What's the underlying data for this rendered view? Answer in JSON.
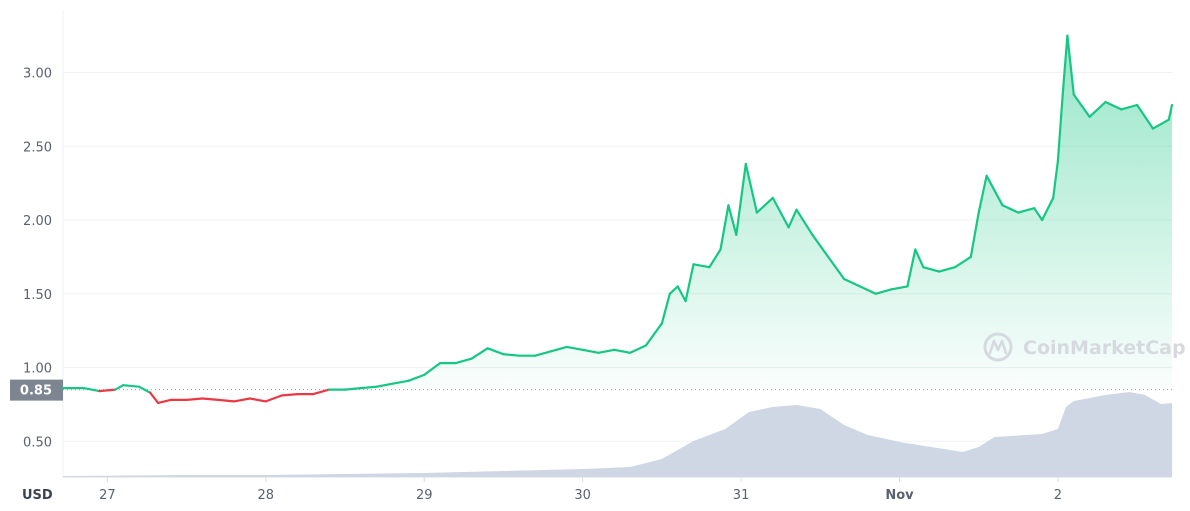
{
  "chart_data": {
    "type": "line",
    "currency_label": "USD",
    "watermark": "CoinMarketCap",
    "reference_price": 0.85,
    "reference_label": "0.85",
    "ylim": [
      0.0,
      3.3
    ],
    "y_ticks": [
      {
        "v": 0.5,
        "label": "0.50"
      },
      {
        "v": 1.0,
        "label": "1.00"
      },
      {
        "v": 1.5,
        "label": "1.50"
      },
      {
        "v": 2.0,
        "label": "2.00"
      },
      {
        "v": 2.5,
        "label": "2.50"
      },
      {
        "v": 3.0,
        "label": "3.00"
      }
    ],
    "x_range": [
      26.72,
      33.72
    ],
    "x_ticks": [
      {
        "d": 27,
        "label": "27",
        "bold": false
      },
      {
        "d": 28,
        "label": "28",
        "bold": false
      },
      {
        "d": 29,
        "label": "29",
        "bold": false
      },
      {
        "d": 30,
        "label": "30",
        "bold": false
      },
      {
        "d": 31,
        "label": "31",
        "bold": false
      },
      {
        "d": 32,
        "label": "Nov",
        "bold": true
      },
      {
        "d": 33,
        "label": "2",
        "bold": false
      }
    ],
    "price_series": [
      [
        26.72,
        0.86
      ],
      [
        26.85,
        0.86
      ],
      [
        26.95,
        0.84
      ],
      [
        27.05,
        0.85
      ],
      [
        27.1,
        0.88
      ],
      [
        27.2,
        0.87
      ],
      [
        27.27,
        0.83
      ],
      [
        27.32,
        0.76
      ],
      [
        27.4,
        0.78
      ],
      [
        27.5,
        0.78
      ],
      [
        27.6,
        0.79
      ],
      [
        27.7,
        0.78
      ],
      [
        27.8,
        0.77
      ],
      [
        27.9,
        0.79
      ],
      [
        28.0,
        0.77
      ],
      [
        28.1,
        0.81
      ],
      [
        28.2,
        0.82
      ],
      [
        28.3,
        0.82
      ],
      [
        28.4,
        0.85
      ],
      [
        28.5,
        0.85
      ],
      [
        28.6,
        0.86
      ],
      [
        28.7,
        0.87
      ],
      [
        28.8,
        0.89
      ],
      [
        28.9,
        0.91
      ],
      [
        29.0,
        0.95
      ],
      [
        29.1,
        1.03
      ],
      [
        29.2,
        1.03
      ],
      [
        29.3,
        1.06
      ],
      [
        29.4,
        1.13
      ],
      [
        29.5,
        1.09
      ],
      [
        29.6,
        1.08
      ],
      [
        29.7,
        1.08
      ],
      [
        29.8,
        1.11
      ],
      [
        29.9,
        1.14
      ],
      [
        30.0,
        1.12
      ],
      [
        30.1,
        1.1
      ],
      [
        30.2,
        1.12
      ],
      [
        30.3,
        1.1
      ],
      [
        30.4,
        1.15
      ],
      [
        30.5,
        1.3
      ],
      [
        30.55,
        1.5
      ],
      [
        30.6,
        1.55
      ],
      [
        30.65,
        1.45
      ],
      [
        30.7,
        1.7
      ],
      [
        30.8,
        1.68
      ],
      [
        30.87,
        1.8
      ],
      [
        30.92,
        2.1
      ],
      [
        30.97,
        1.9
      ],
      [
        31.03,
        2.38
      ],
      [
        31.1,
        2.05
      ],
      [
        31.2,
        2.15
      ],
      [
        31.3,
        1.95
      ],
      [
        31.35,
        2.07
      ],
      [
        31.45,
        1.9
      ],
      [
        31.55,
        1.75
      ],
      [
        31.65,
        1.6
      ],
      [
        31.75,
        1.55
      ],
      [
        31.85,
        1.5
      ],
      [
        31.95,
        1.53
      ],
      [
        32.05,
        1.55
      ],
      [
        32.1,
        1.8
      ],
      [
        32.15,
        1.68
      ],
      [
        32.25,
        1.65
      ],
      [
        32.35,
        1.68
      ],
      [
        32.45,
        1.75
      ],
      [
        32.5,
        2.05
      ],
      [
        32.55,
        2.3
      ],
      [
        32.65,
        2.1
      ],
      [
        32.75,
        2.05
      ],
      [
        32.85,
        2.08
      ],
      [
        32.9,
        2.0
      ],
      [
        32.97,
        2.15
      ],
      [
        33.0,
        2.4
      ],
      [
        33.03,
        2.85
      ],
      [
        33.06,
        3.25
      ],
      [
        33.1,
        2.85
      ],
      [
        33.2,
        2.7
      ],
      [
        33.3,
        2.8
      ],
      [
        33.4,
        2.75
      ],
      [
        33.5,
        2.78
      ],
      [
        33.6,
        2.62
      ],
      [
        33.7,
        2.68
      ],
      [
        33.72,
        2.78
      ]
    ],
    "volume_series": [
      [
        26.72,
        0.01
      ],
      [
        27.5,
        0.02
      ],
      [
        28.0,
        0.02
      ],
      [
        28.5,
        0.03
      ],
      [
        29.0,
        0.04
      ],
      [
        29.5,
        0.06
      ],
      [
        30.0,
        0.08
      ],
      [
        30.3,
        0.1
      ],
      [
        30.5,
        0.18
      ],
      [
        30.7,
        0.36
      ],
      [
        30.9,
        0.48
      ],
      [
        31.05,
        0.65
      ],
      [
        31.2,
        0.7
      ],
      [
        31.35,
        0.72
      ],
      [
        31.5,
        0.68
      ],
      [
        31.65,
        0.52
      ],
      [
        31.8,
        0.42
      ],
      [
        32.0,
        0.35
      ],
      [
        32.2,
        0.3
      ],
      [
        32.4,
        0.25
      ],
      [
        32.5,
        0.3
      ],
      [
        32.6,
        0.4
      ],
      [
        32.9,
        0.43
      ],
      [
        33.0,
        0.48
      ],
      [
        33.05,
        0.7
      ],
      [
        33.1,
        0.76
      ],
      [
        33.3,
        0.82
      ],
      [
        33.45,
        0.85
      ],
      [
        33.55,
        0.82
      ],
      [
        33.65,
        0.73
      ],
      [
        33.72,
        0.74
      ]
    ]
  }
}
